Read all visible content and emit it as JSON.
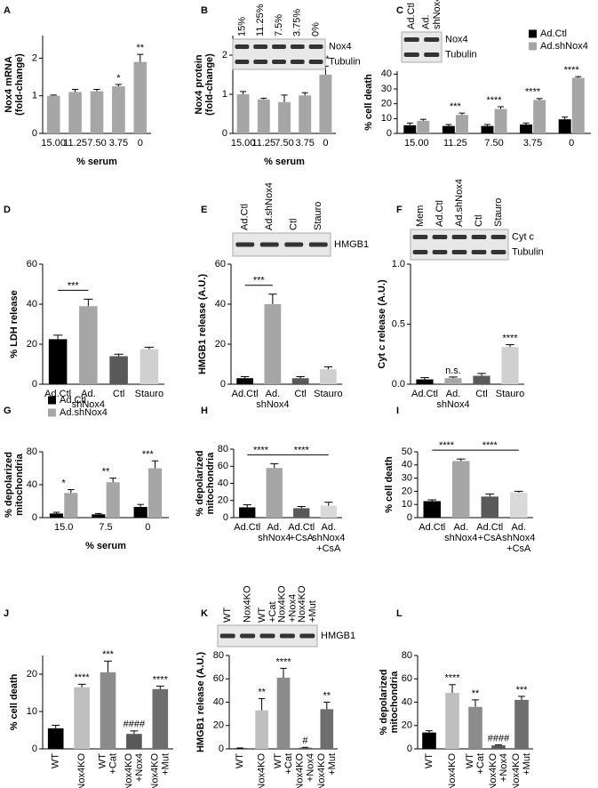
{
  "chart_data": [
    {
      "type": "bar",
      "panel": "A",
      "ylabel": "Nox4 mRNA\n(fold-change)",
      "xlabel": "% serum",
      "categories": [
        "15.00",
        "11.25",
        "7.50",
        "3.75",
        "0"
      ],
      "values": [
        1.0,
        1.1,
        1.12,
        1.25,
        1.9
      ],
      "errors": [
        0.02,
        0.07,
        0.05,
        0.05,
        0.2
      ],
      "color": "#a6a6a6",
      "ylim": [
        0,
        2.6
      ],
      "yticks": [
        0,
        1,
        2
      ],
      "annotations": [
        {
          "text": "*",
          "category": "3.75"
        },
        {
          "text": "**",
          "category": "0"
        }
      ]
    },
    {
      "type": "bar",
      "panel": "B",
      "ylabel": "Nox4 protein\n(fold-change)",
      "xlabel": "% serum",
      "categories": [
        "15.00",
        "11.25",
        "7.50",
        "3.75",
        "0"
      ],
      "values": [
        1.0,
        0.87,
        0.8,
        0.97,
        1.5
      ],
      "errors": [
        0.07,
        0.03,
        0.18,
        0.07,
        0.22
      ],
      "color": "#a6a6a6",
      "ylim": [
        0,
        2.5
      ],
      "yticks": [
        0,
        1,
        2
      ],
      "annotations": [
        {
          "text": "**",
          "category": "0"
        }
      ],
      "blot": {
        "lanes": [
          "15%",
          "11.25%",
          "7.5%",
          "3.75%",
          "0%"
        ],
        "bands": [
          "Nox4",
          "Tubulin"
        ]
      }
    },
    {
      "type": "bar",
      "panel": "C",
      "ylabel": "% cell death",
      "categories": [
        "15.00",
        "11.25",
        "7.50",
        "3.75",
        "0"
      ],
      "series": [
        {
          "name": "Ad.Ctl",
          "color": "#000000",
          "values": [
            5.5,
            5,
            5,
            6,
            9.5
          ],
          "errors": [
            1.5,
            1,
            1,
            1,
            1.5
          ]
        },
        {
          "name": "Ad.shNox4",
          "color": "#a6a6a6",
          "values": [
            8.5,
            12.5,
            16.5,
            22.5,
            37.5
          ],
          "errors": [
            1,
            1.2,
            1.5,
            1,
            0.8
          ]
        }
      ],
      "legend": "upper right",
      "ylim": [
        0,
        42
      ],
      "yticks": [
        0,
        10,
        20,
        30,
        40
      ],
      "annotations": [
        {
          "text": "***",
          "category": "11.25"
        },
        {
          "text": "****",
          "category": "7.50"
        },
        {
          "text": "****",
          "category": "3.75"
        },
        {
          "text": "****",
          "category": "0"
        }
      ],
      "blot": {
        "lanes": [
          "Ad.Ctl",
          "Ad.\nshNox4"
        ],
        "bands": [
          "Nox4",
          "Tubulin"
        ]
      }
    },
    {
      "type": "bar",
      "panel": "D",
      "ylabel": "% LDH release",
      "categories": [
        "Ad.Ctl",
        "Ad.\nshNox4",
        "Ctl",
        "Stauro"
      ],
      "values": [
        22.5,
        39,
        14,
        17.5
      ],
      "errors": [
        2,
        3.5,
        1,
        1
      ],
      "colors": [
        "#000000",
        "#a6a6a6",
        "#595959",
        "#d0d0d0"
      ],
      "ylim": [
        0,
        60
      ],
      "yticks": [
        0,
        20,
        40,
        60
      ],
      "annotations": [
        {
          "text": "***",
          "between": [
            "Ad.Ctl",
            "Ad.\nshNox4"
          ]
        }
      ]
    },
    {
      "type": "bar",
      "panel": "E",
      "ylabel": "HMGB1 release (A.U.)",
      "categories": [
        "Ad.Ctl",
        "Ad.\nshNox4",
        "Ctl",
        "Stauro"
      ],
      "values": [
        3,
        40,
        3,
        7.5
      ],
      "errors": [
        0.8,
        5,
        0.8,
        1.2
      ],
      "colors": [
        "#000000",
        "#a6a6a6",
        "#595959",
        "#d0d0d0"
      ],
      "ylim": [
        0,
        60
      ],
      "yticks": [
        0,
        20,
        40,
        60
      ],
      "annotations": [
        {
          "text": "***",
          "between": [
            "Ad.Ctl",
            "Ad.\nshNox4"
          ]
        }
      ],
      "blot": {
        "lanes": [
          "Ad.Ctl",
          "Ad.shNox4",
          "Ctl",
          "Stauro"
        ],
        "bands": [
          "HMGB1"
        ]
      }
    },
    {
      "type": "bar",
      "panel": "F",
      "ylabel": "Cyt c release (A.U.)",
      "categories": [
        "Ad.Ctl",
        "Ad.\nshNox4",
        "Ctl",
        "Stauro"
      ],
      "values": [
        0.04,
        0.05,
        0.07,
        0.31
      ],
      "errors": [
        0.015,
        0.01,
        0.02,
        0.02
      ],
      "colors": [
        "#000000",
        "#a6a6a6",
        "#595959",
        "#d0d0d0"
      ],
      "ylim": [
        0,
        1.0
      ],
      "yticks": [
        {
          "value": 0,
          "label": "0.0"
        },
        {
          "value": 0.5,
          "label": "0.5"
        },
        {
          "value": 1.0,
          "label": "1.0"
        }
      ],
      "annotations": [
        {
          "text": "n.s.",
          "category": "Ad.\nshNox4"
        },
        {
          "text": "****",
          "category": "Stauro"
        }
      ],
      "blot": {
        "lanes": [
          "Mem",
          "Ad.Ctl",
          "Ad.shNox4",
          "Ctl",
          "Stauro"
        ],
        "bands": [
          "Cyt c",
          "Tubulin"
        ]
      }
    },
    {
      "type": "bar",
      "panel": "G",
      "ylabel": "% depolarized\nmitochondria",
      "xlabel": "% serum",
      "categories": [
        "15.0",
        "7.5",
        "0"
      ],
      "series": [
        {
          "name": "Ad.Ctl",
          "color": "#000000",
          "values": [
            5,
            4,
            13
          ],
          "errors": [
            1.5,
            1,
            3
          ]
        },
        {
          "name": "Ad.shNox4",
          "color": "#a6a6a6",
          "values": [
            30,
            43,
            60
          ],
          "errors": [
            4,
            5,
            9
          ]
        }
      ],
      "legend": "upper left",
      "ylim": [
        0,
        80
      ],
      "yticks": [
        0,
        40,
        80
      ],
      "annotations": [
        {
          "text": "*",
          "category": "15.0"
        },
        {
          "text": "**",
          "category": "7.5"
        },
        {
          "text": "***",
          "category": "0"
        }
      ]
    },
    {
      "type": "bar",
      "panel": "H",
      "ylabel": "% depolarized\nmitochondria",
      "categories": [
        "Ad.Ctl",
        "Ad.\nshNox4",
        "Ad.Ctl\n+CsA",
        "Ad.\nshNox4\n+CsA"
      ],
      "values": [
        12,
        58,
        11,
        14
      ],
      "errors": [
        3,
        5,
        2,
        4
      ],
      "colors": [
        "#000000",
        "#a6a6a6",
        "#595959",
        "#d9d9d9"
      ],
      "ylim": [
        0,
        80
      ],
      "yticks": [
        0,
        20,
        40,
        60,
        80
      ],
      "annotations": [
        {
          "text": "****",
          "between": [
            "Ad.Ctl",
            "Ad.\nshNox4"
          ]
        },
        {
          "text": "****",
          "between": [
            "Ad.\nshNox4",
            "Ad.\nshNox4\n+CsA"
          ]
        }
      ]
    },
    {
      "type": "bar",
      "panel": "I",
      "ylabel": "% cell death",
      "categories": [
        "Ad.Ctl",
        "Ad.\nshNox4",
        "Ad.Ctl\n+CsA",
        "Ad.\nshNox4\n+CsA"
      ],
      "values": [
        12.5,
        43,
        16,
        19
      ],
      "errors": [
        1,
        1.5,
        2,
        1
      ],
      "colors": [
        "#000000",
        "#a6a6a6",
        "#595959",
        "#d9d9d9"
      ],
      "ylim": [
        0,
        50
      ],
      "yticks": [
        0,
        10,
        20,
        30,
        40,
        50
      ],
      "annotations": [
        {
          "text": "****",
          "between": [
            "Ad.Ctl",
            "Ad.\nshNox4"
          ]
        },
        {
          "text": "****",
          "between": [
            "Ad.\nshNox4",
            "Ad.\nshNox4\n+CsA"
          ]
        }
      ]
    },
    {
      "type": "bar",
      "panel": "J",
      "ylabel": "% cell death",
      "rotate_labels": true,
      "categories": [
        "WT",
        "Nox4KO",
        "WT\n+Cat",
        "Nox4KO\n+Nox4",
        "Nox4KO\n+Mut"
      ],
      "values": [
        5.5,
        16.5,
        20.5,
        4,
        16
      ],
      "errors": [
        0.8,
        0.8,
        3,
        0.8,
        0.8
      ],
      "colors": [
        "#000000",
        "#bfbfbf",
        "#8c8c8c",
        "#595959",
        "#6e6e6e"
      ],
      "ylim": [
        0,
        25
      ],
      "yticks": [
        0,
        10,
        20
      ],
      "annotations": [
        {
          "text": "****",
          "category": "Nox4KO"
        },
        {
          "text": "***",
          "category": "WT\n+Cat"
        },
        {
          "text": "####",
          "category": "Nox4KO\n+Nox4"
        },
        {
          "text": "****",
          "category": "Nox4KO\n+Mut"
        }
      ]
    },
    {
      "type": "bar",
      "panel": "K",
      "ylabel": "HMGB1 release (A.U.)",
      "rotate_labels": true,
      "categories": [
        "WT",
        "Nox4KO",
        "WT\n+Cat",
        "Nox4KO\n+Nox4",
        "Nox4KO\n+Mut"
      ],
      "values": [
        0.5,
        33,
        61,
        1,
        34
      ],
      "errors": [
        0.3,
        10,
        8,
        0.3,
        6
      ],
      "colors": [
        "#000000",
        "#bfbfbf",
        "#8c8c8c",
        "#595959",
        "#6e6e6e"
      ],
      "ylim": [
        0,
        80
      ],
      "yticks": [
        0,
        20,
        40,
        60,
        80
      ],
      "annotations": [
        {
          "text": "**",
          "category": "Nox4KO"
        },
        {
          "text": "****",
          "category": "WT\n+Cat"
        },
        {
          "text": "#",
          "category": "Nox4KO\n+Nox4"
        },
        {
          "text": "**",
          "category": "Nox4KO\n+Mut"
        }
      ],
      "blot": {
        "lanes": [
          "WT",
          "Nox4KO",
          "WT\n+Cat",
          "Nox4KO\n+Nox4",
          "Nox4KO\n+Mut"
        ],
        "bands": [
          "HMGB1"
        ]
      }
    },
    {
      "type": "bar",
      "panel": "L",
      "ylabel": "% depolarized\nmitochondria",
      "rotate_labels": true,
      "categories": [
        "WT",
        "Nox4KO",
        "WT\n+Cat",
        "Nox4KO\n+Nox4",
        "Nox4KO\n+Mut"
      ],
      "values": [
        14,
        48,
        36,
        3,
        42
      ],
      "errors": [
        1.5,
        7,
        6,
        0.5,
        3
      ],
      "colors": [
        "#000000",
        "#bfbfbf",
        "#8c8c8c",
        "#595959",
        "#6e6e6e"
      ],
      "ylim": [
        0,
        80
      ],
      "yticks": [
        0,
        20,
        40,
        60,
        80
      ],
      "annotations": [
        {
          "text": "****",
          "category": "Nox4KO"
        },
        {
          "text": "**",
          "category": "WT\n+Cat"
        },
        {
          "text": "####",
          "category": "Nox4KO\n+Nox4"
        },
        {
          "text": "***",
          "category": "Nox4KO\n+Mut"
        }
      ]
    }
  ]
}
